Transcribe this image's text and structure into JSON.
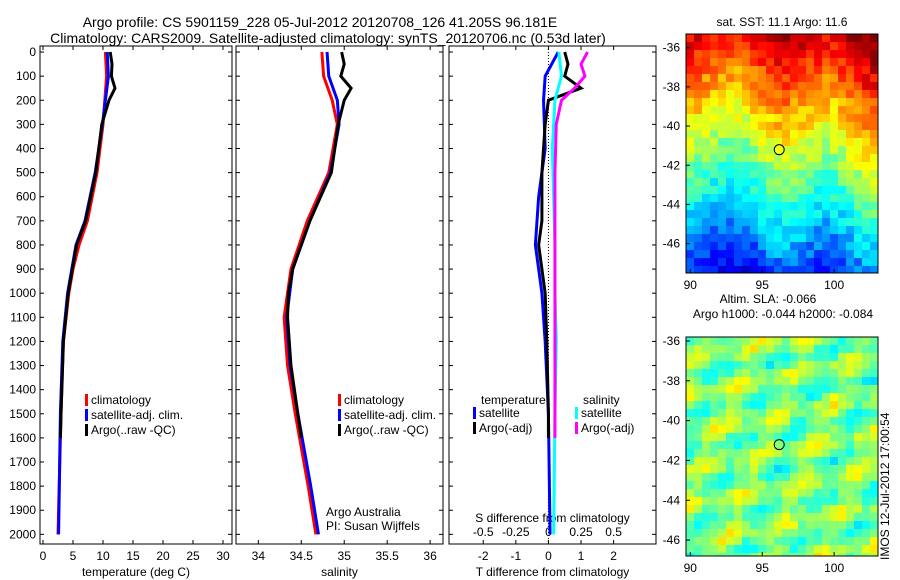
{
  "title_line1": "Argo profile: CS 5901159_228 05-Jul-2012 20120708_126 41.205S 96.181E",
  "title_line2": "Climatology: CARS2009. Satellite-adjusted climatology: synTS_20120706.nc (0.53d later)",
  "footer_stamp": "IMOS 12-Jul-2012 17:00:54",
  "chart_data": [
    {
      "type": "line",
      "name": "temperature",
      "xlabel": "temperature (deg C)",
      "xlim": [
        -0.5,
        31.5
      ],
      "ylim": [
        2040,
        -25
      ],
      "xticks": [
        0,
        5,
        10,
        15,
        20,
        25,
        30
      ],
      "yticks": [
        0,
        100,
        200,
        300,
        400,
        500,
        600,
        700,
        800,
        900,
        1000,
        1100,
        1200,
        1300,
        1400,
        1500,
        1600,
        1700,
        1800,
        1900,
        2000
      ],
      "legend": [
        "climatology",
        "satellite-adj. clim.",
        "Argo(..raw -QC)"
      ],
      "series": [
        {
          "name": "climatology",
          "color": "#ff0000",
          "depth": [
            0,
            100,
            300,
            500,
            700,
            800,
            900,
            1000,
            1200,
            1500,
            2000
          ],
          "values": [
            10.4,
            10.6,
            10.0,
            9.0,
            7.4,
            6.0,
            5.0,
            4.3,
            3.4,
            3.0,
            2.5
          ]
        },
        {
          "name": "satellite-adj. clim.",
          "color": "#0000ff",
          "depth": [
            0,
            100,
            300,
            500,
            700,
            800,
            900,
            1000,
            1200,
            1500,
            2000
          ],
          "values": [
            10.7,
            10.9,
            9.9,
            8.7,
            7.0,
            5.5,
            4.8,
            4.1,
            3.3,
            2.9,
            2.6
          ]
        },
        {
          "name": "Argo(..raw -QC)",
          "color": "#000000",
          "depth": [
            0,
            50,
            100,
            150,
            200,
            300,
            500,
            700,
            800,
            900,
            1000,
            1200,
            1500,
            1600
          ],
          "values": [
            11.2,
            11.5,
            11.4,
            12.0,
            11.0,
            9.8,
            8.8,
            7.1,
            5.6,
            4.9,
            4.2,
            3.4,
            3.0,
            2.9
          ]
        }
      ]
    },
    {
      "type": "line",
      "name": "salinity",
      "xlabel": "salinity",
      "xlim": [
        33.74,
        36.15
      ],
      "ylim": [
        2040,
        -25
      ],
      "xticks": [
        34,
        34.5,
        35,
        35.5,
        36
      ],
      "yticks": [
        0,
        100,
        200,
        300,
        400,
        500,
        600,
        700,
        800,
        900,
        1000,
        1100,
        1200,
        1300,
        1400,
        1500,
        1600,
        1700,
        1800,
        1900,
        2000
      ],
      "legend": [
        "climatology",
        "satellite-adj. clim.",
        "Argo(..raw -QC)"
      ],
      "annotation": [
        "Argo Australia",
        "PI: Susan Wijffels"
      ],
      "series": [
        {
          "name": "climatology",
          "color": "#ff0000",
          "depth": [
            0,
            100,
            200,
            300,
            500,
            700,
            900,
            1100,
            1300,
            1500,
            1800,
            2000
          ],
          "values": [
            34.74,
            34.76,
            34.86,
            34.92,
            34.82,
            34.57,
            34.38,
            34.3,
            34.34,
            34.43,
            34.58,
            34.67
          ]
        },
        {
          "name": "satellite-adj. clim.",
          "color": "#0000ff",
          "depth": [
            0,
            100,
            200,
            300,
            500,
            700,
            900,
            1100,
            1300,
            1500,
            1800,
            2000
          ],
          "values": [
            34.8,
            34.82,
            34.92,
            34.94,
            34.84,
            34.6,
            34.4,
            34.33,
            34.37,
            34.46,
            34.61,
            34.7
          ]
        },
        {
          "name": "Argo(..raw -QC)",
          "color": "#000000",
          "depth": [
            0,
            50,
            100,
            150,
            200,
            300,
            500,
            700,
            900,
            1000,
            1100,
            1300,
            1500,
            1600
          ],
          "values": [
            34.97,
            35.0,
            34.96,
            35.08,
            35.0,
            34.93,
            34.85,
            34.6,
            34.4,
            34.35,
            34.34,
            34.38,
            34.46,
            34.5
          ]
        }
      ]
    },
    {
      "type": "line",
      "name": "difference",
      "xlabel": "T difference from climatology",
      "xlabel2": "S difference from climatology",
      "xlim": [
        -3.05,
        3.3
      ],
      "ylim": [
        2040,
        -25
      ],
      "xticks": [
        -2,
        -1,
        0,
        1,
        2
      ],
      "xticks2": [
        -0.5,
        -0.25,
        0,
        0.25,
        0.5
      ],
      "yticks": [
        0,
        100,
        200,
        300,
        400,
        500,
        600,
        700,
        800,
        900,
        1000,
        1100,
        1200,
        1300,
        1400,
        1500,
        1600,
        1700,
        1800,
        1900,
        2000
      ],
      "legend_t_title": "temperature",
      "legend_s_title": "salinity",
      "legend": [
        "satellite",
        "Argo(-adj)",
        "satellite",
        "Argo(-adj)"
      ],
      "series": [
        {
          "name": "T satellite",
          "color": "#0000ff",
          "depth": [
            0,
            100,
            200,
            400,
            600,
            800,
            1000,
            1200,
            1500,
            2000
          ],
          "values": [
            0.3,
            -0.1,
            -0.15,
            -0.1,
            -0.3,
            -0.4,
            -0.2,
            -0.1,
            0,
            0.05
          ]
        },
        {
          "name": "T Argo(-adj)",
          "color": "#000000",
          "depth": [
            0,
            50,
            100,
            150,
            200,
            300,
            500,
            700,
            800,
            1000,
            1200,
            1500,
            1600
          ],
          "values": [
            0.5,
            0.6,
            0.5,
            1.0,
            0.0,
            -0.1,
            -0.2,
            -0.2,
            -0.3,
            -0.1,
            -0.05,
            0,
            0
          ]
        },
        {
          "name": "S satellite",
          "color": "#00ffff",
          "depth": [
            0,
            100,
            200,
            400,
            600,
            800,
            1000,
            1200,
            1500,
            2000
          ],
          "values": [
            0.08,
            0.1,
            0.05,
            0.03,
            0.04,
            0.05,
            0.05,
            0.06,
            0.05,
            0.04
          ]
        },
        {
          "name": "S Argo(-adj)",
          "color": "#ff00ff",
          "depth": [
            0,
            50,
            100,
            150,
            200,
            300,
            500,
            700,
            1000,
            1200,
            1500,
            1600
          ],
          "values": [
            0.3,
            0.25,
            0.28,
            0.2,
            0.1,
            0.06,
            0.05,
            0.05,
            0.05,
            0.05,
            0.05,
            0.05
          ]
        }
      ]
    },
    {
      "type": "heatmap",
      "name": "sst-map",
      "title": "sat. SST: 11.1  Argo: 11.6",
      "xlim": [
        89.7,
        103.05
      ],
      "ylim": [
        -47.5,
        -35.3
      ],
      "xticks": [
        90,
        95,
        100
      ],
      "yticks": [
        -36,
        -38,
        -40,
        -42,
        -44,
        -46
      ],
      "marker": [
        96.181,
        -41.205
      ]
    },
    {
      "type": "heatmap",
      "name": "sla-map",
      "title": "Altim. SLA: -0.066",
      "title2": "Argo h1000: -0.044 h2000: -0.084",
      "xlim": [
        89.7,
        103.05
      ],
      "ylim": [
        -46.8,
        -35.8
      ],
      "xticks": [
        90,
        95,
        100
      ],
      "yticks": [
        -36,
        -38,
        -40,
        -42,
        -44,
        -46
      ],
      "marker": [
        96.181,
        -41.205
      ]
    }
  ]
}
